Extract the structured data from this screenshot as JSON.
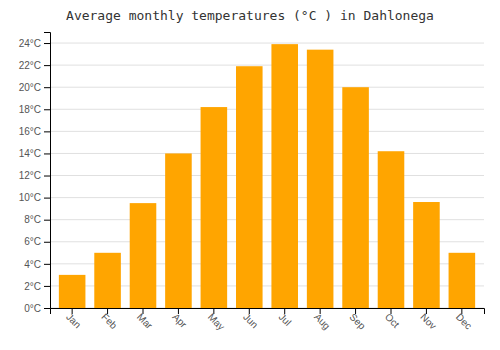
{
  "chart_data": {
    "type": "bar",
    "title": "Average monthly temperatures (°C ) in Dahlonega",
    "categories": [
      "Jan",
      "Feb",
      "Mar",
      "Apr",
      "May",
      "Jun",
      "Jul",
      "Aug",
      "Sep",
      "Oct",
      "Nov",
      "Dec"
    ],
    "values": [
      3.0,
      5.0,
      9.5,
      14.0,
      18.2,
      21.9,
      23.9,
      23.4,
      20.0,
      14.2,
      9.6,
      5.0
    ],
    "color": "#FFA500",
    "ylim": [
      0,
      25
    ],
    "yticks": [
      {
        "value": 0,
        "label": "0°C"
      },
      {
        "value": 2,
        "label": "2°C"
      },
      {
        "value": 4,
        "label": "4°C"
      },
      {
        "value": 6,
        "label": "6°C"
      },
      {
        "value": 8,
        "label": "8°C"
      },
      {
        "value": 10,
        "label": "10°C"
      },
      {
        "value": 12,
        "label": "12°C"
      },
      {
        "value": 14,
        "label": "14°C"
      },
      {
        "value": 16,
        "label": "16°C"
      },
      {
        "value": 18,
        "label": "18°C"
      },
      {
        "value": 20,
        "label": "20°C"
      },
      {
        "value": 22,
        "label": "22°C"
      },
      {
        "value": 24,
        "label": "24°C"
      }
    ],
    "grid": true
  }
}
